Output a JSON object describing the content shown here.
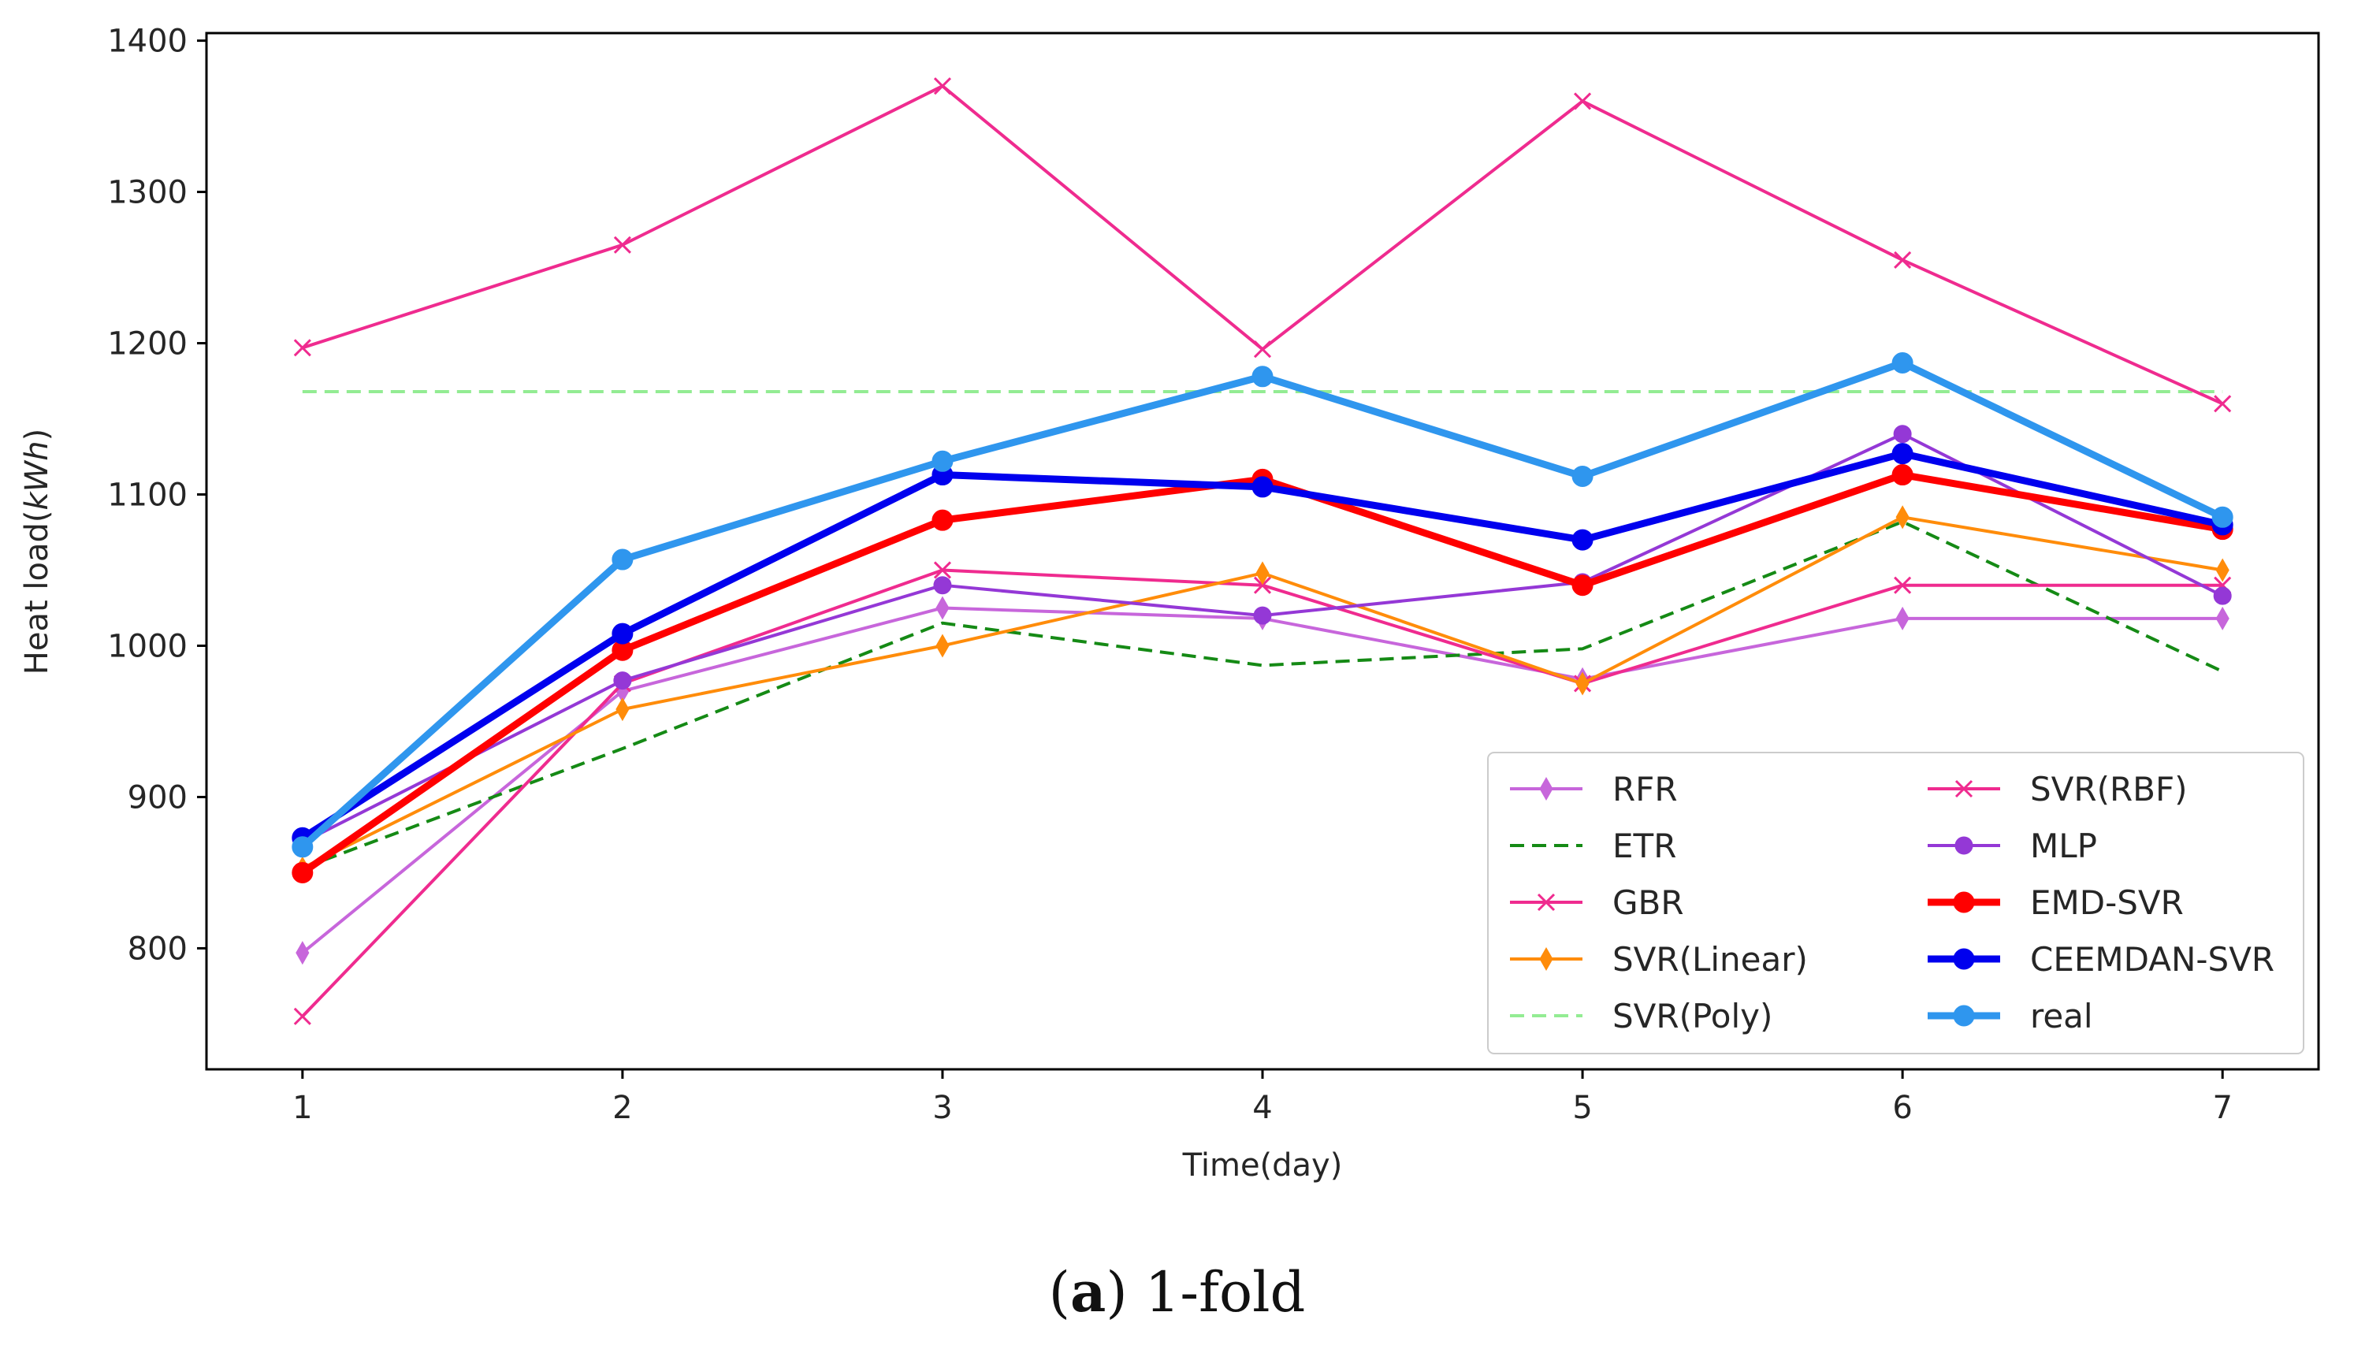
{
  "chart_data": {
    "type": "line",
    "title": "",
    "xlabel": "Time(day)",
    "ylabel": "Heat load",
    "ylabel_unit": "kWh",
    "x": [
      1,
      2,
      3,
      4,
      5,
      6,
      7
    ],
    "xticks": [
      1,
      2,
      3,
      4,
      5,
      6,
      7
    ],
    "yticks": [
      800,
      900,
      1000,
      1100,
      1200,
      1300,
      1400
    ],
    "xlim": [
      0.7,
      7.3
    ],
    "ylim": [
      720,
      1405
    ],
    "legend_position": "lower-right",
    "series": [
      {
        "name": "RFR",
        "values": [
          797,
          970,
          1025,
          1018,
          978,
          1018,
          1018
        ],
        "color": "#c766db",
        "style": "solid",
        "marker": "thin-diamond",
        "weight": "normal"
      },
      {
        "name": "ETR",
        "values": [
          853,
          932,
          1015,
          987,
          998,
          1082,
          983
        ],
        "color": "#158a15",
        "style": "dashed",
        "marker": "none",
        "weight": "normal"
      },
      {
        "name": "GBR",
        "values": [
          755,
          975,
          1050,
          1040,
          975,
          1040,
          1040
        ],
        "color": "#ef2b8f",
        "style": "solid",
        "marker": "x",
        "weight": "normal"
      },
      {
        "name": "SVR(Linear)",
        "values": [
          853,
          958,
          1000,
          1048,
          975,
          1085,
          1050
        ],
        "color": "#ff8c0a",
        "style": "solid",
        "marker": "thin-diamond",
        "weight": "normal"
      },
      {
        "name": "SVR(Poly)",
        "values": [
          1168,
          1168,
          1168,
          1168,
          1168,
          1168,
          1168
        ],
        "color": "#93ec93",
        "style": "dashed",
        "marker": "none",
        "weight": "normal"
      },
      {
        "name": "SVR(RBF)",
        "values": [
          1197,
          1265,
          1370,
          1196,
          1360,
          1255,
          1160
        ],
        "color": "#ef2b8f",
        "style": "solid",
        "marker": "x",
        "weight": "normal"
      },
      {
        "name": "MLP",
        "values": [
          870,
          977,
          1040,
          1020,
          1042,
          1140,
          1033
        ],
        "color": "#9438d6",
        "style": "solid",
        "marker": "circle",
        "weight": "normal"
      },
      {
        "name": "EMD-SVR",
        "values": [
          850,
          997,
          1083,
          1110,
          1040,
          1113,
          1077
        ],
        "color": "#ff0000",
        "style": "solid",
        "marker": "circle",
        "weight": "bold"
      },
      {
        "name": "CEEMDAN-SVR",
        "values": [
          873,
          1008,
          1113,
          1105,
          1070,
          1127,
          1080
        ],
        "color": "#0000ee",
        "style": "solid",
        "marker": "circle",
        "weight": "bold"
      },
      {
        "name": "real",
        "values": [
          867,
          1057,
          1122,
          1178,
          1112,
          1187,
          1085
        ],
        "color": "#2f96ee",
        "style": "solid",
        "marker": "circle",
        "weight": "bold"
      }
    ]
  },
  "caption": {
    "prefix_open": "(",
    "letter": "a",
    "prefix_close": ")",
    "text": " 1-fold"
  }
}
